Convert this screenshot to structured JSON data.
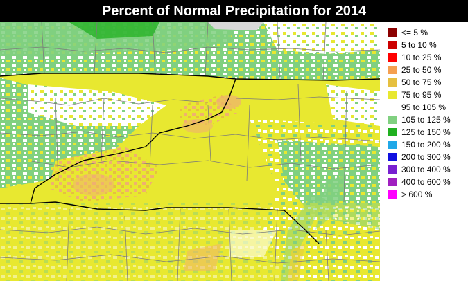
{
  "title": "Percent of Normal Precipitation for 2014",
  "legend": [
    {
      "label": "<= 5 %",
      "color": "#8b0000"
    },
    {
      "label": "5 to 10 %",
      "color": "#cc0000"
    },
    {
      "label": "10 to 25 %",
      "color": "#ff0000"
    },
    {
      "label": "25 to 50 %",
      "color": "#f5a050"
    },
    {
      "label": "50 to 75 %",
      "color": "#e6c040"
    },
    {
      "label": "75 to 95 %",
      "color": "#e8e830"
    },
    {
      "label": "95 to 105 %",
      "color": "#ffffff"
    },
    {
      "label": "105 to 125 %",
      "color": "#80d080"
    },
    {
      "label": "125 to 150 %",
      "color": "#20b020"
    },
    {
      "label": "150 to 200 %",
      "color": "#20a8e8"
    },
    {
      "label": "200 to 300 %",
      "color": "#1010e0"
    },
    {
      "label": "300 to 400 %",
      "color": "#7820d0"
    },
    {
      "label": "400 to 600 %",
      "color": "#a020c0"
    },
    {
      "label": "> 600 %",
      "color": "#ff00ff"
    }
  ],
  "map": {
    "region": "North Carolina / Virginia / South Carolina area",
    "background_category": "75 to 95 %",
    "colors": {
      "border_state": "#000000",
      "border_county": "#7a7a7a",
      "no_data": "#d8d8d8"
    }
  }
}
